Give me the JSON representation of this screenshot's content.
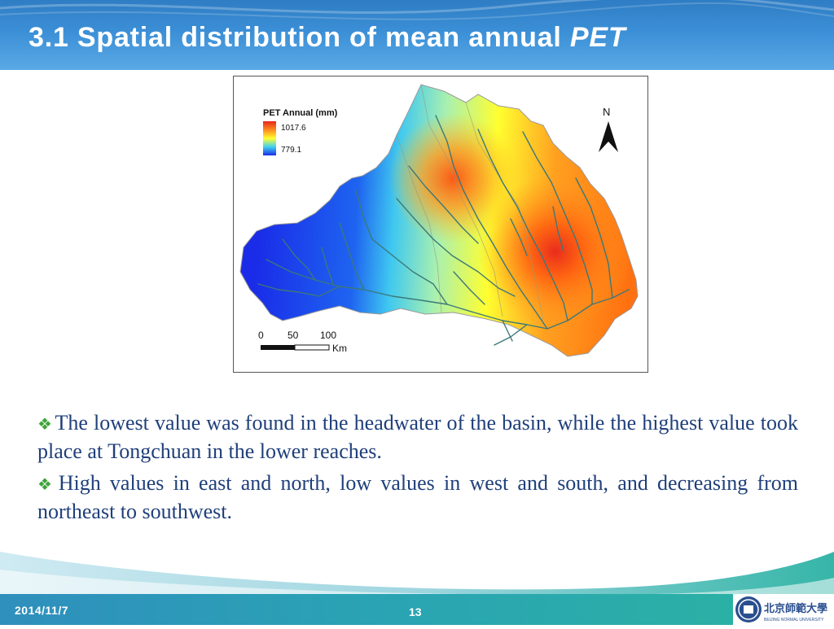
{
  "slide": {
    "title_main": "3.1 Spatial distribution of mean annual ",
    "title_italic": "PET",
    "bullets": [
      "The lowest value was found in the headwater of the basin, while the highest value took place at Tongchuan in the lower reaches.",
      "High values in east and north, low values in west and south, and decreasing from northeast to southwest."
    ],
    "footer": {
      "date": "2014/11/7",
      "page": "13"
    },
    "logo": {
      "text_cn": "北京師範大學",
      "text_en": "BEIJING NORMAL UNIVERSITY"
    }
  },
  "map": {
    "legend_title": "PET Annual (mm)",
    "legend_high": "1017.6",
    "legend_low": "779.1",
    "north_label": "N",
    "scale_labels": [
      "0",
      "50",
      "100"
    ],
    "scale_unit": "Km",
    "colors": {
      "high": "#e8261c",
      "mid_high": "#ffa020",
      "mid": "#ffff30",
      "mid_low": "#60e0e0",
      "low": "#1a2ce8",
      "river": "#3c7878"
    }
  }
}
